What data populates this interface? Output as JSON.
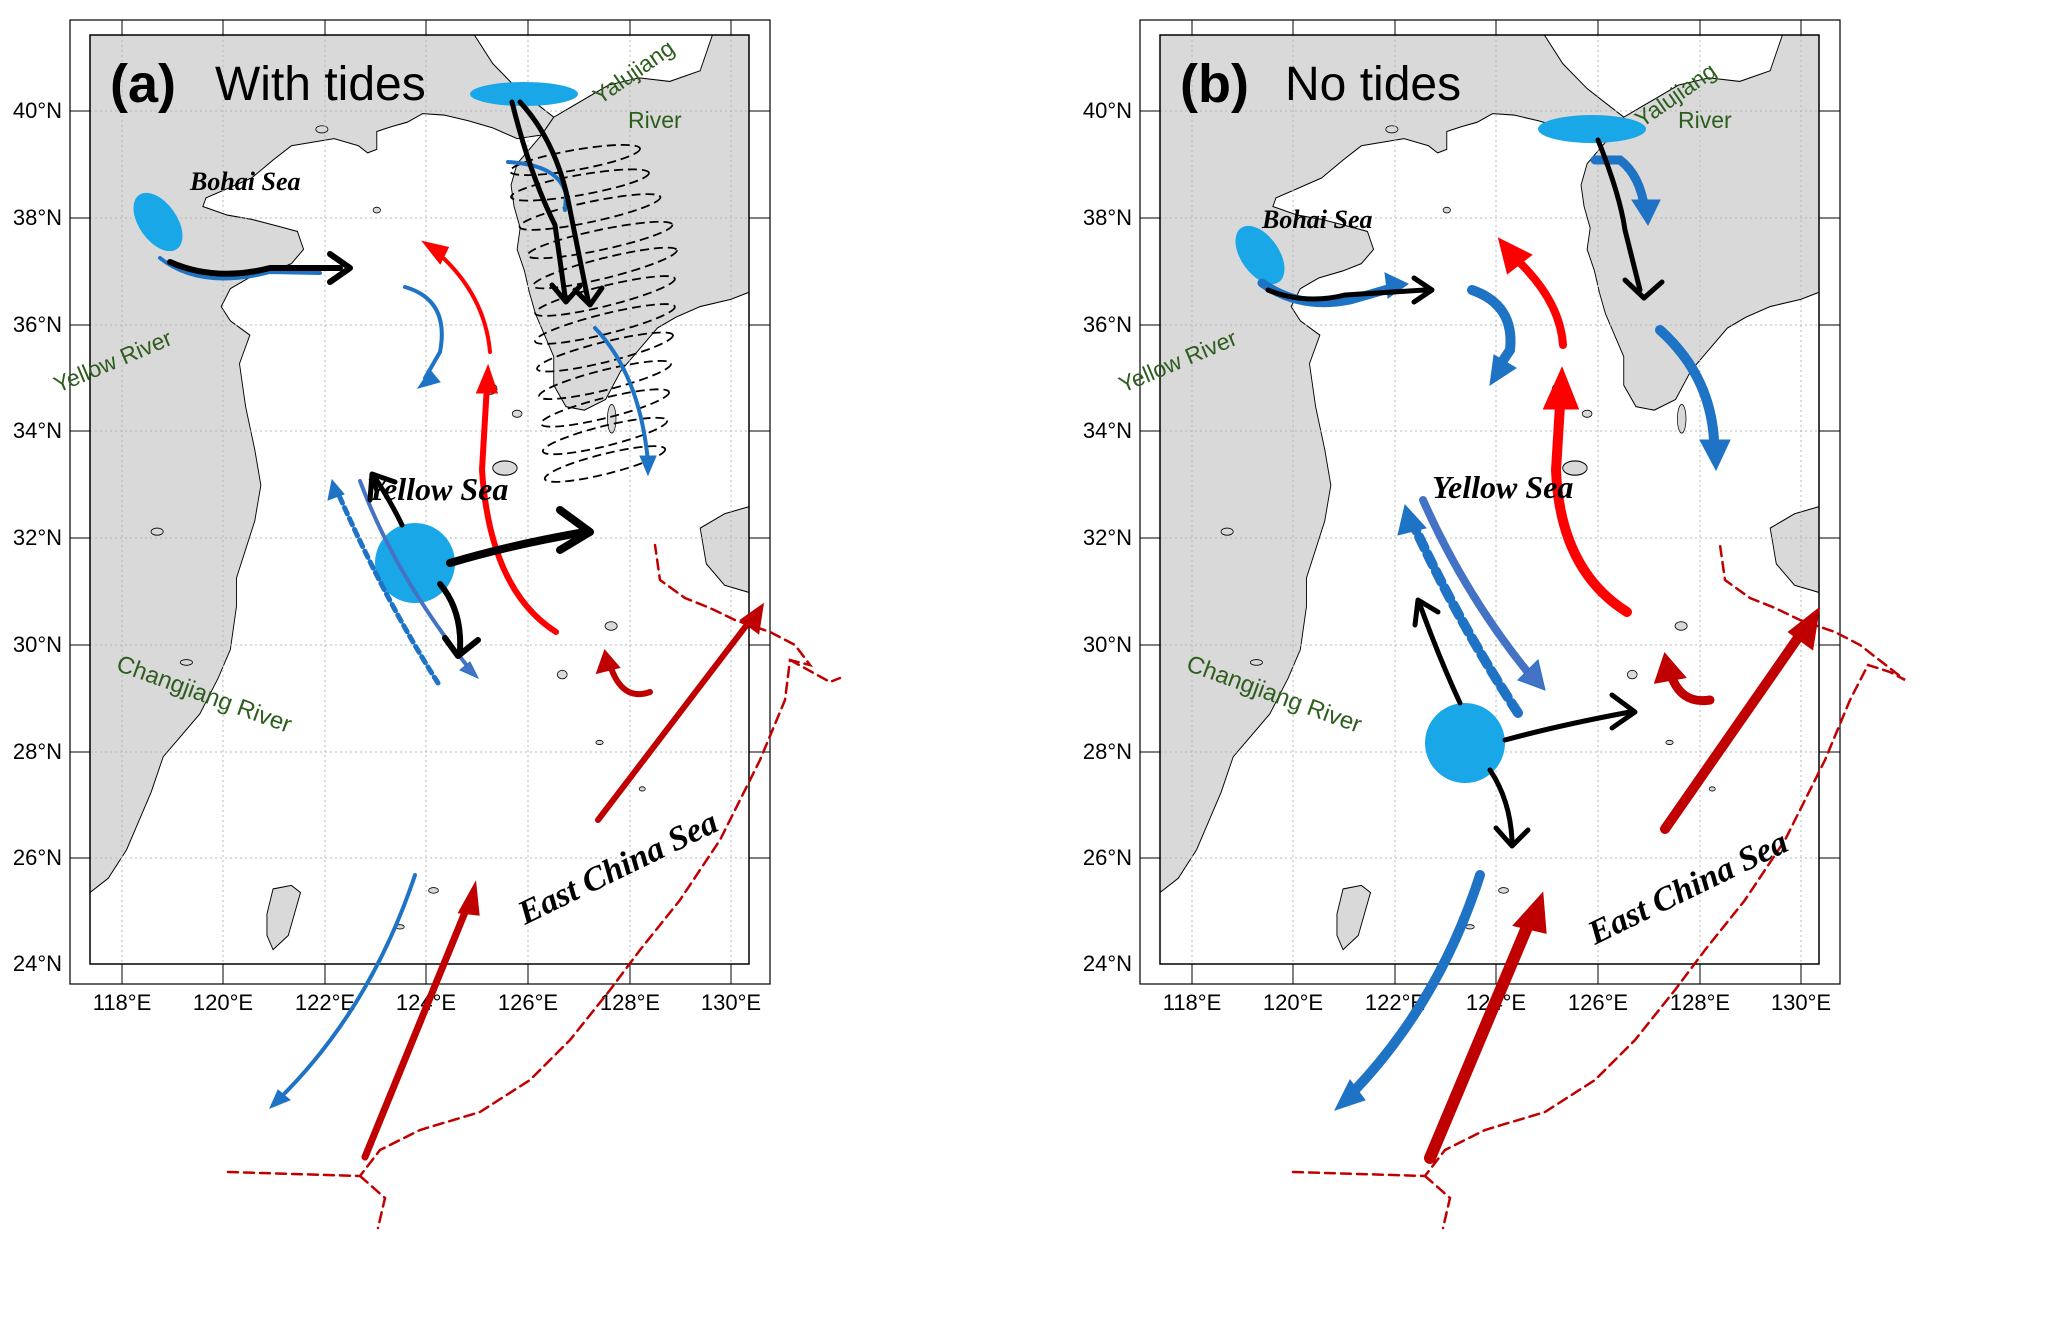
{
  "panels": [
    {
      "id": "a",
      "label": "(a)",
      "title": "With tides",
      "places": {
        "bohai": "Bohai Sea",
        "yellow_sea": "Yellow Sea",
        "ecs": "East China Sea",
        "yellow_river": "Yellow River",
        "changjiang": "Changjiang River",
        "yalu_1": "Yalujiang",
        "yalu_2": "River"
      }
    },
    {
      "id": "b",
      "label": "(b)",
      "title": "No tides",
      "places": {
        "bohai": "Bohai Sea",
        "yellow_sea": "Yellow Sea",
        "ecs": "East China Sea",
        "yellow_river": "Yellow River",
        "changjiang": "Changjiang River",
        "yalu_1": "Yalujiang",
        "yalu_2": "River"
      }
    }
  ],
  "axes": {
    "lat_ticks": [
      "24°N",
      "26°N",
      "28°N",
      "30°N",
      "32°N",
      "34°N",
      "36°N",
      "38°N",
      "40°N"
    ],
    "lon_ticks": [
      "118°E",
      "120°E",
      "122°E",
      "124°E",
      "126°E",
      "128°E",
      "130°E"
    ]
  },
  "colors": {
    "land": "#d9d9d9",
    "coast": "#000000",
    "fresh_water": "#1aa7e8",
    "warm_current": "#ff0000",
    "kuroshio": "#c00000",
    "coastal_current": "#1f73c4",
    "yellow_sea_cold": "#4472c4",
    "plume": "#000000",
    "text_green": "#2e5e1e",
    "grid": "#b8b8b8"
  }
}
